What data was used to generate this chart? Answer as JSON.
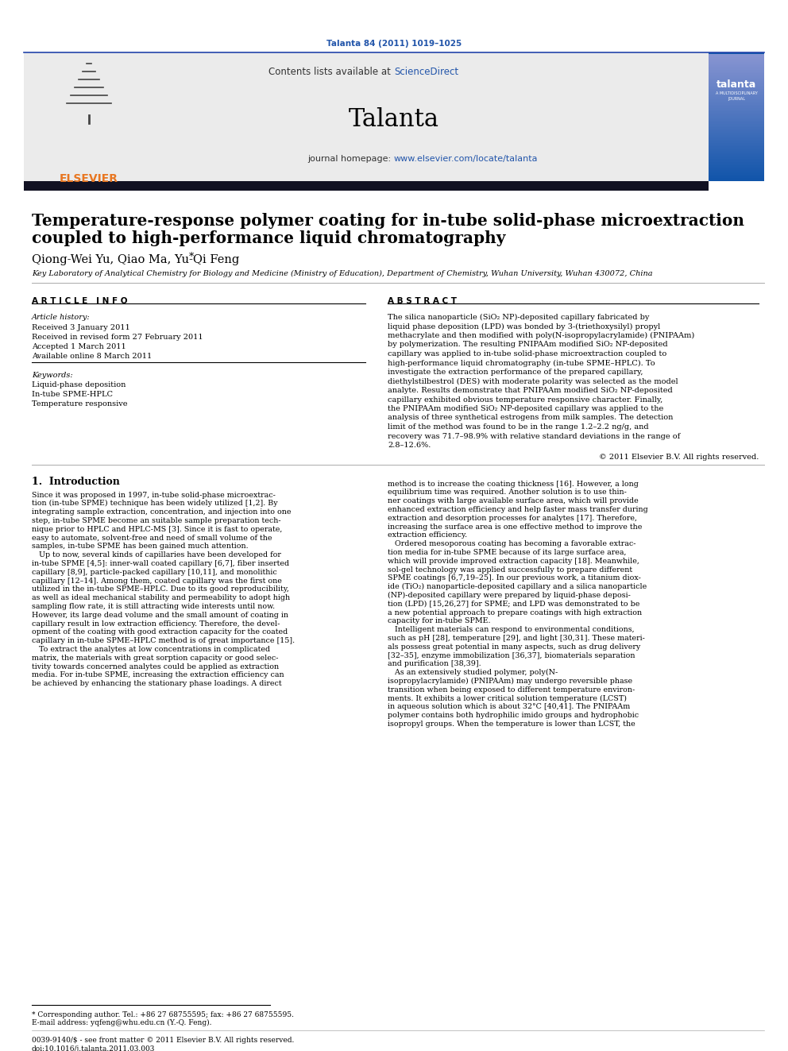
{
  "journal_ref": "Talanta 84 (2011) 1019–1025",
  "journal_name": "Talanta",
  "contents_text": "Contents lists available at ",
  "sciencedirect": "ScienceDirect",
  "journal_homepage_prefix": "journal homepage: ",
  "journal_homepage_url": "www.elsevier.com/locate/talanta",
  "title_line1": "Temperature-response polymer coating for in-tube solid-phase microextraction",
  "title_line2": "coupled to high-performance liquid chromatography",
  "authors_main": "Qiong-Wei Yu, Qiao Ma, Yu-Qi Feng",
  "authors_star": "*",
  "affiliation": "Key Laboratory of Analytical Chemistry for Biology and Medicine (Ministry of Education), Department of Chemistry, Wuhan University, Wuhan 430072, China",
  "article_info_header": "A R T I C L E   I N F O",
  "abstract_header": "A B S T R A C T",
  "article_history_label": "Article history:",
  "received1": "Received 3 January 2011",
  "received2": "Received in revised form 27 February 2011",
  "accepted": "Accepted 1 March 2011",
  "available": "Available online 8 March 2011",
  "keywords_label": "Keywords:",
  "keyword1": "Liquid-phase deposition",
  "keyword2": "In-tube SPME-HPLC",
  "keyword3": "Temperature responsive",
  "abstract_text": "The silica nanoparticle (SiO₂ NP)-deposited capillary fabricated by liquid phase deposition (LPD) was bonded by 3-(triethoxysilyl) propyl methacrylate and then modified with poly(N-isopropylacrylamide) (PNIPAAm) by polymerization. The resulting PNIPAAm modified SiO₂ NP-deposited capillary was applied to in-tube solid-phase microextraction coupled to high-performance liquid chromatography (in-tube SPME–HPLC). To investigate the extraction performance of the prepared capillary, diethylstilbestrol (DES) with moderate polarity was selected as the model analyte. Results demonstrate that PNIPAAm modified SiO₂ NP-deposited capillary exhibited obvious temperature responsive character. Finally, the PNIPAAm modified SiO₂ NP-deposited capillary was applied to the analysis of three synthetical estrogens from milk samples. The detection limit of the method was found to be in the range 1.2–2.2 ng/g, and recovery was 71.7–98.9% with relative standard deviations in the range of 2.8–12.6%.",
  "copyright": "© 2011 Elsevier B.V. All rights reserved.",
  "intro_header": "1.  Introduction",
  "intro_col1_lines": [
    "Since it was proposed in 1997, in-tube solid-phase microextrac-",
    "tion (in-tube SPME) technique has been widely utilized [1,2]. By",
    "integrating sample extraction, concentration, and injection into one",
    "step, in-tube SPME become an suitable sample preparation tech-",
    "nique prior to HPLC and HPLC-MS [3]. Since it is fast to operate,",
    "easy to automate, solvent-free and need of small volume of the",
    "samples, in-tube SPME has been gained much attention.",
    "   Up to now, several kinds of capillaries have been developed for",
    "in-tube SPME [4,5]: inner-wall coated capillary [6,7], fiber inserted",
    "capillary [8,9], particle-packed capillary [10,11], and monolithic",
    "capillary [12–14]. Among them, coated capillary was the first one",
    "utilized in the in-tube SPME–HPLC. Due to its good reproducibility,",
    "as well as ideal mechanical stability and permeability to adopt high",
    "sampling flow rate, it is still attracting wide interests until now.",
    "However, its large dead volume and the small amount of coating in",
    "capillary result in low extraction efficiency. Therefore, the devel-",
    "opment of the coating with good extraction capacity for the coated",
    "capillary in in-tube SPME–HPLC method is of great importance [15].",
    "   To extract the analytes at low concentrations in complicated",
    "matrix, the materials with great sorption capacity or good selec-",
    "tivity towards concerned analytes could be applied as extraction",
    "media. For in-tube SPME, increasing the extraction efficiency can",
    "be achieved by enhancing the stationary phase loadings. A direct"
  ],
  "intro_col2_lines": [
    "method is to increase the coating thickness [16]. However, a long",
    "equilibrium time was required. Another solution is to use thin-",
    "ner coatings with large available surface area, which will provide",
    "enhanced extraction efficiency and help faster mass transfer during",
    "extraction and desorption processes for analytes [17]. Therefore,",
    "increasing the surface area is one effective method to improve the",
    "extraction efficiency.",
    "   Ordered mesoporous coating has becoming a favorable extrac-",
    "tion media for in-tube SPME because of its large surface area,",
    "which will provide improved extraction capacity [18]. Meanwhile,",
    "sol-gel technology was applied successfully to prepare different",
    "SPME coatings [6,7,19–25]. In our previous work, a titanium diox-",
    "ide (TiO₂) nanoparticle-deposited capillary and a silica nanoparticle",
    "(NP)-deposited capillary were prepared by liquid-phase deposi-",
    "tion (LPD) [15,26,27] for SPME; and LPD was demonstrated to be",
    "a new potential approach to prepare coatings with high extraction",
    "capacity for in-tube SPME.",
    "   Intelligent materials can respond to environmental conditions,",
    "such as pH [28], temperature [29], and light [30,31]. These materi-",
    "als possess great potential in many aspects, such as drug delivery",
    "[32–35], enzyme immobilization [36,37], biomaterials separation",
    "and purification [38,39].",
    "   As an extensively studied polymer, poly(N-",
    "isopropylacrylamide) (PNIPAAm) may undergo reversible phase",
    "transition when being exposed to different temperature environ-",
    "ments. It exhibits a lower critical solution temperature (LCST)",
    "in aqueous solution which is about 32°C [40,41]. The PNIPAAm",
    "polymer contains both hydrophilic imido groups and hydrophobic",
    "isopropyl groups. When the temperature is lower than LCST, the"
  ],
  "footnote_star": "* Corresponding author. Tel.: +86 27 68755595; fax: +86 27 68755595.",
  "footnote_email": "E-mail address: yqfeng@whu.edu.cn (Y.-Q. Feng).",
  "footnote_issn": "0039-9140/$ - see front matter © 2011 Elsevier B.V. All rights reserved.",
  "footnote_doi": "doi:10.1016/j.talanta.2011.03.003",
  "bg_color": "#ffffff",
  "header_bg": "#ebebeb",
  "dark_bar_color": "#1a1a2e",
  "link_color": "#2255aa",
  "elsevier_orange": "#e87722",
  "talanta_blue": "#1a5aaa"
}
